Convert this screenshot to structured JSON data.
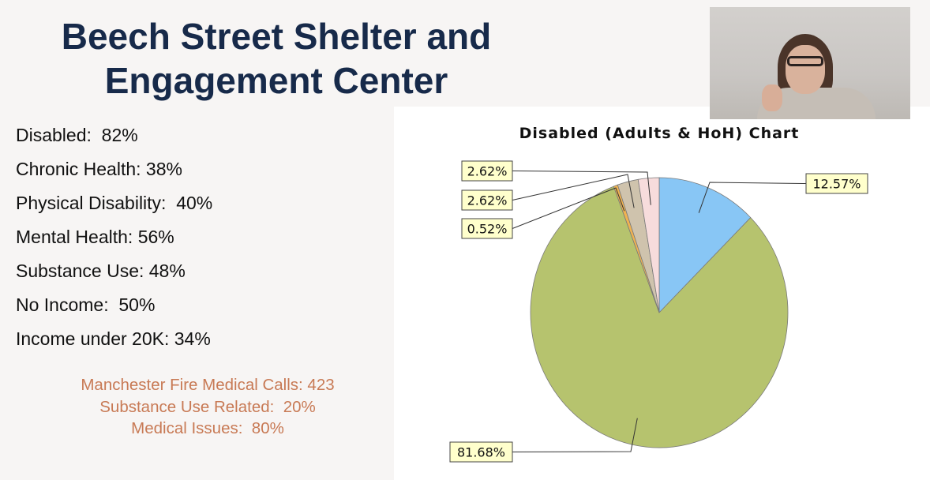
{
  "slide": {
    "title_line1": "Beech Street Shelter and",
    "title_line2": "Engagement Center"
  },
  "stats": [
    "Disabled:  82%",
    "Chronic Health: 38%",
    "Physical Disability:  40%",
    "Mental Health: 56%",
    "Substance Use: 48%",
    "No Income:  50%",
    "Income under 20K: 34%"
  ],
  "fire": [
    "Manchester Fire Medical Calls: 423",
    "Substance Use Related:  20%",
    "Medical Issues:  80%"
  ],
  "chart_data": {
    "type": "pie",
    "title": "Disabled (Adults & HoH) Chart",
    "slices": [
      {
        "label": "12.57%",
        "value": 12.57,
        "color": "#88c6f5"
      },
      {
        "label": "81.68%",
        "value": 81.68,
        "color": "#b6c36e"
      },
      {
        "label": "0.52%",
        "value": 0.52,
        "color": "#f1b351"
      },
      {
        "label": "2.62%",
        "value": 2.62,
        "color": "#cfc3ad"
      },
      {
        "label": "2.62%",
        "value": 2.62,
        "color": "#f7dcdc"
      }
    ]
  }
}
